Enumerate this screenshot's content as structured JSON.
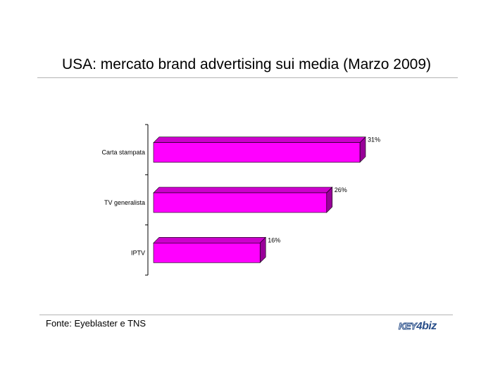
{
  "title": "USA: mercato brand advertising sui media (Marzo 2009)",
  "source": "Fonte: Eyeblaster e TNS",
  "logo_text": "KEY4biz",
  "chart_data": {
    "type": "bar",
    "orientation": "horizontal",
    "categories": [
      "Carta stampata",
      "TV generalista",
      "IPTV"
    ],
    "values": [
      31,
      26,
      16
    ],
    "data_labels": [
      "31%",
      "26%",
      "16%"
    ],
    "bar_color": "#ff00ff",
    "bar_side_color": "#990099",
    "bar_top_color": "#cc00cc",
    "xlim": [
      0,
      31
    ],
    "grid": false,
    "legend": "none"
  }
}
